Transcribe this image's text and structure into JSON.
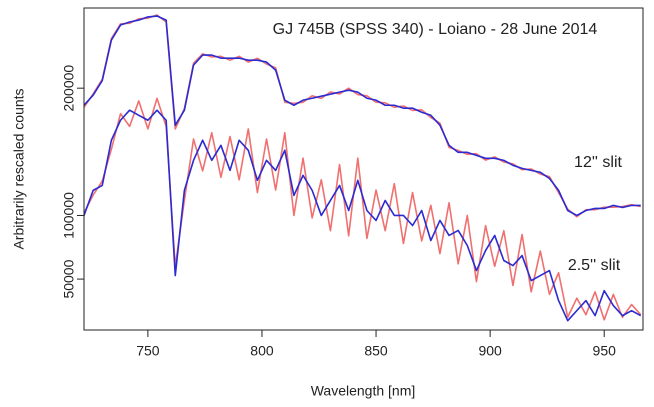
{
  "chart_data": {
    "type": "line",
    "title": "GJ 745B (SPSS 340) - Loiano - 28 June 2014",
    "x_label": "Wavelength [nm]",
    "y_label": "Arbitrarily rescaled counts",
    "annotations": [
      "12'' slit",
      "2.5'' slit"
    ],
    "xlim": [
      722,
      967
    ],
    "ylim": [
      10000,
      263000
    ],
    "xticks": [
      750,
      800,
      850,
      900,
      950
    ],
    "yticks": [
      50000,
      100000,
      200000
    ],
    "x": [
      722,
      726,
      730,
      734,
      738,
      742,
      746,
      750,
      754,
      758,
      762,
      766,
      770,
      774,
      778,
      782,
      786,
      790,
      794,
      798,
      802,
      806,
      810,
      814,
      818,
      822,
      826,
      830,
      834,
      838,
      842,
      846,
      850,
      854,
      858,
      862,
      866,
      870,
      874,
      878,
      882,
      886,
      890,
      894,
      898,
      902,
      906,
      910,
      914,
      918,
      922,
      926,
      930,
      934,
      938,
      942,
      946,
      950,
      954,
      958,
      962,
      966
    ],
    "series": [
      {
        "color": "#f07070",
        "values": [
          185000,
          195500,
          207000,
          239000,
          250500,
          251000,
          254500,
          255000,
          257500,
          252000,
          168000,
          184000,
          219500,
          227000,
          224500,
          225000,
          222000,
          225000,
          220500,
          223500,
          219000,
          216000,
          189000,
          188000,
          189000,
          194000,
          192000,
          197000,
          195500,
          200000,
          195000,
          194000,
          189000,
          188500,
          185000,
          186000,
          182500,
          183000,
          177000,
          172500,
          153500,
          151000,
          148000,
          148500,
          143500,
          146000,
          142000,
          140500,
          136000,
          136500,
          132500,
          130500,
          118000,
          105000,
          99000,
          104500,
          104500,
          106500,
          106500,
          107000,
          108500,
          107000
        ]
      },
      {
        "color": "#2b2bd1",
        "values": [
          186600,
          194500,
          206000,
          237800,
          249600,
          252000,
          253500,
          256000,
          256700,
          253500,
          170900,
          182700,
          218100,
          226000,
          226000,
          223600,
          223600,
          223600,
          222000,
          222000,
          220500,
          214200,
          190600,
          186600,
          190600,
          192100,
          193700,
          195300,
          196900,
          198400,
          196900,
          192100,
          190600,
          186600,
          186600,
          184300,
          184300,
          181100,
          178700,
          170900,
          155100,
          149600,
          149600,
          147200,
          144900,
          144900,
          143300,
          139400,
          137000,
          135400,
          133900,
          129100,
          119700,
          103900,
          100000,
          103900,
          105500,
          105500,
          107900,
          106300,
          107900,
          107900
        ]
      },
      {
        "color": "#f07070",
        "values": [
          102000,
          116000,
          127000,
          152000,
          180000,
          170000,
          190000,
          168000,
          192000,
          170000,
          60000,
          112000,
          160000,
          135000,
          165000,
          130000,
          162000,
          128000,
          168000,
          118000,
          160000,
          120000,
          165000,
          100000,
          145000,
          98000,
          128000,
          88000,
          140000,
          84000,
          145000,
          82000,
          120000,
          88000,
          125000,
          78000,
          118000,
          80000,
          108000,
          70000,
          110000,
          62000,
          100000,
          48000,
          92000,
          60000,
          88000,
          45000,
          85000,
          40000,
          72000,
          38000,
          55000,
          20000,
          35000,
          22000,
          40000,
          18000,
          38000,
          20000,
          30000,
          22000
        ]
      },
      {
        "color": "#2b2bd1",
        "values": [
          100000,
          119700,
          123600,
          159100,
          174800,
          182700,
          178700,
          174800,
          182700,
          174800,
          52800,
          119700,
          143300,
          159100,
          143300,
          155100,
          135400,
          159100,
          151200,
          127600,
          143300,
          135400,
          151200,
          115700,
          131500,
          119700,
          100000,
          111800,
          123600,
          103900,
          127600,
          103900,
          96100,
          111800,
          100000,
          100000,
          92100,
          103900,
          80300,
          96100,
          84300,
          88200,
          76400,
          56700,
          72400,
          84300,
          64600,
          60600,
          68500,
          48800,
          52800,
          56700,
          33100,
          17300,
          25200,
          33100,
          21300,
          40900,
          29200,
          21300,
          25200,
          21300
        ]
      }
    ]
  }
}
